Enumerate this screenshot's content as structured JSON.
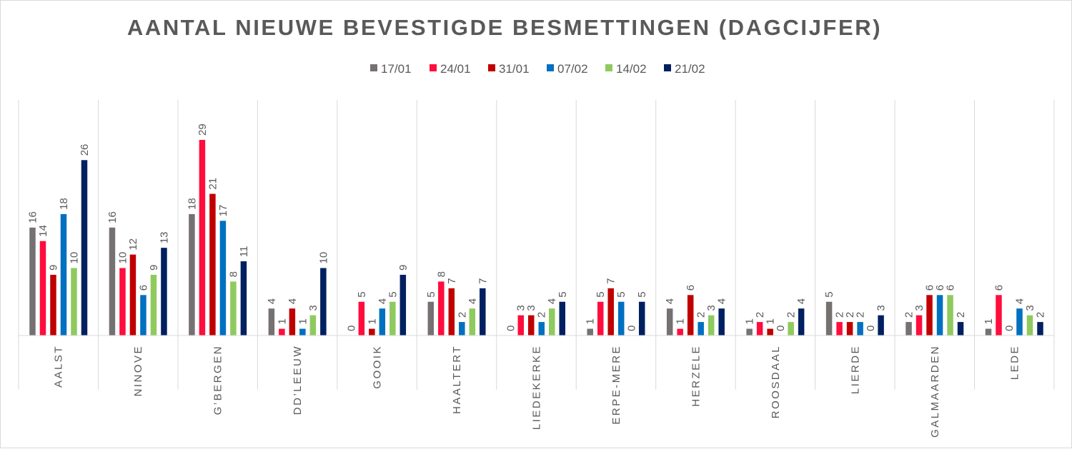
{
  "chart_data": {
    "type": "bar",
    "title": "AANTAL NIEUWE BEVESTIGDE BESMETTINGEN (DAGCIJFER)",
    "xlabel": "",
    "ylabel": "",
    "ylim": [
      0,
      30
    ],
    "grid": false,
    "legend_position": "top",
    "categories": [
      "AALST",
      "NINOVE",
      "G’BERGEN",
      "DD’LEEUW",
      "GOOIK",
      "HAALTERT",
      "LIEDEKERKE",
      "ERPE-MERE",
      "HERZELE",
      "ROOSDAAL",
      "LIERDE",
      "GALMAARDEN",
      "LEDE"
    ],
    "series": [
      {
        "name": "17/01",
        "color": "#767171",
        "values": [
          16,
          16,
          18,
          4,
          0,
          5,
          0,
          1,
          4,
          1,
          5,
          2,
          1
        ]
      },
      {
        "name": "24/01",
        "color": "#ff0d3d",
        "values": [
          14,
          10,
          29,
          1,
          5,
          8,
          3,
          5,
          1,
          2,
          2,
          3,
          6
        ]
      },
      {
        "name": "31/01",
        "color": "#c00000",
        "values": [
          9,
          12,
          21,
          4,
          1,
          7,
          3,
          7,
          6,
          1,
          2,
          6,
          0
        ]
      },
      {
        "name": "07/02",
        "color": "#0070c0",
        "values": [
          18,
          6,
          17,
          1,
          4,
          2,
          2,
          5,
          2,
          0,
          2,
          6,
          4
        ]
      },
      {
        "name": "14/02",
        "color": "#8fca5e",
        "values": [
          10,
          9,
          8,
          3,
          5,
          4,
          4,
          0,
          3,
          2,
          0,
          6,
          3
        ]
      },
      {
        "name": "21/02",
        "color": "#002060",
        "values": [
          26,
          13,
          11,
          10,
          9,
          7,
          5,
          5,
          4,
          4,
          3,
          2,
          2
        ]
      }
    ]
  }
}
